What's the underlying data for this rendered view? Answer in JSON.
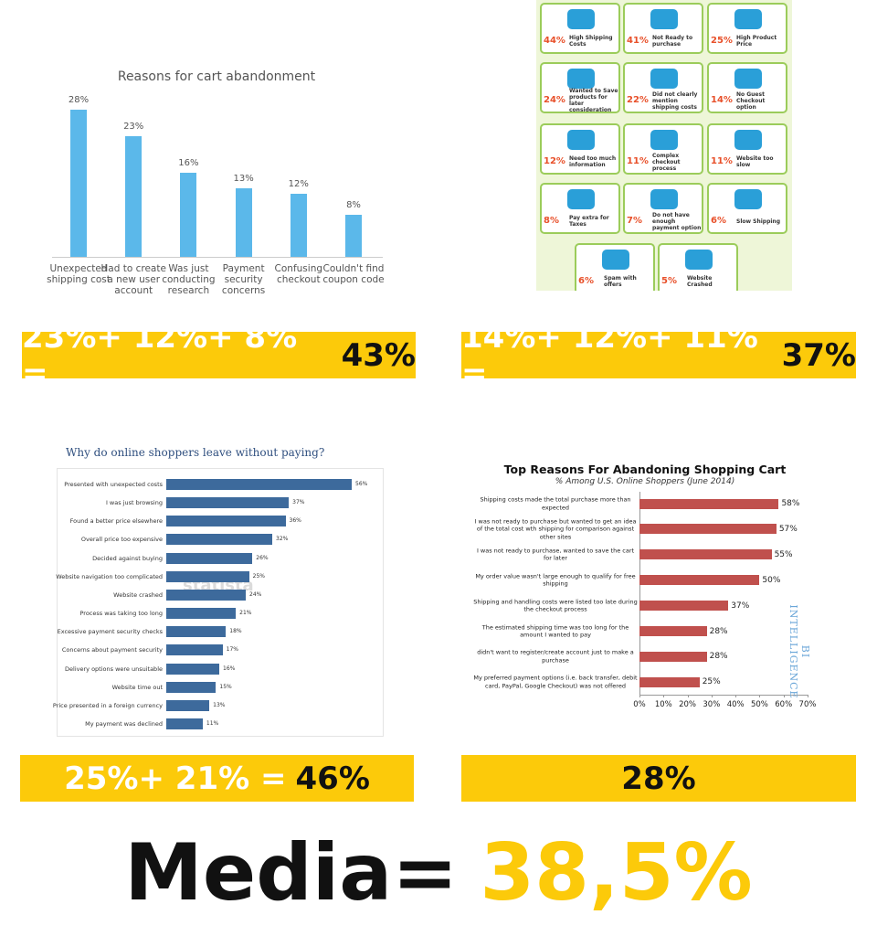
{
  "chart_data": [
    {
      "type": "bar",
      "orientation": "vertical",
      "title": "Reasons for cart abandonment",
      "color": "#5bb8ea",
      "categories": [
        "Unexpected shipping cost",
        "Had to create a new user account",
        "Was just conducting research",
        "Payment security concerns",
        "Confusing checkout",
        "Couldn't find coupon code"
      ],
      "values": [
        28,
        23,
        16,
        13,
        12,
        8
      ],
      "value_labels": [
        "28%",
        "23%",
        "16%",
        "13%",
        "12%",
        "8%"
      ]
    },
    {
      "type": "bar",
      "orientation": "horizontal",
      "title": "Why do online shoppers leave without paying?",
      "color": "#3d6a9c",
      "watermark": "statista",
      "categories": [
        "Presented with unexpected costs",
        "I was just browsing",
        "Found a better price elsewhere",
        "Overall price too expensive",
        "Decided against buying",
        "Website navigation too complicated",
        "Website crashed",
        "Process was taking too long",
        "Excessive payment security checks",
        "Concerns about payment security",
        "Delivery options were unsuitable",
        "Website time out",
        "Price presented in a foreign currency",
        "My payment was declined"
      ],
      "values": [
        56,
        37,
        36,
        32,
        26,
        25,
        24,
        21,
        18,
        17,
        16,
        15,
        13,
        11
      ],
      "value_labels": [
        "56%",
        "37%",
        "36%",
        "32%",
        "26%",
        "25%",
        "24%",
        "21%",
        "18%",
        "17%",
        "16%",
        "15%",
        "13%",
        "11%"
      ]
    },
    {
      "type": "bar",
      "orientation": "horizontal",
      "title": "Top Reasons For Abandoning Shopping Cart",
      "subtitle": "% Among U.S. Online Shoppers (June 2014)",
      "color": "#c0504d",
      "watermark": "BI INTELLIGENCE",
      "categories": [
        "Shipping costs made the total purchase more than expected",
        "I was not ready to purchase but wanted to get an idea of the total cost wth shipping for comparison against other sites",
        "I was not ready to purchase, wanted to save the cart for later",
        "My order value wasn't large enough to qualify for free shipping",
        "Shipping and handling costs were listed too late during the checkout process",
        "The estimated shipping time was too long for the amount I wanted to pay",
        "didn't want to register/create account just to make a purchase",
        "My preferred payment options (i.e. back transfer, debit card, PayPal, Google Checkout) was not offered"
      ],
      "values": [
        58,
        57,
        55,
        50,
        37,
        28,
        28,
        25
      ],
      "value_labels": [
        "58%",
        "57%",
        "55%",
        "50%",
        "37%",
        "28%",
        "28%",
        "25%"
      ],
      "xlim": [
        0,
        70
      ],
      "xticks": [
        {
          "value": 0,
          "label": "0%"
        },
        {
          "value": 10,
          "label": "10%"
        },
        {
          "value": 20,
          "label": "20%"
        },
        {
          "value": 30,
          "label": "30%"
        },
        {
          "value": 40,
          "label": "40%"
        },
        {
          "value": 50,
          "label": "50%"
        },
        {
          "value": 60,
          "label": "60%"
        },
        {
          "value": 70,
          "label": "70%"
        }
      ]
    }
  ],
  "infographic": {
    "items": [
      {
        "value": "44%",
        "label": "High Shipping Costs"
      },
      {
        "value": "41%",
        "label": "Not Ready to purchase"
      },
      {
        "value": "25%",
        "label": "High Product Price"
      },
      {
        "value": "24%",
        "label": "Wanted to Save products for later consideration"
      },
      {
        "value": "22%",
        "label": "Did not clearly mention shipping costs"
      },
      {
        "value": "14%",
        "label": "No Guest Checkout option"
      },
      {
        "value": "12%",
        "label": "Need too much information"
      },
      {
        "value": "11%",
        "label": "Complex checkout process"
      },
      {
        "value": "11%",
        "label": "Website too slow"
      },
      {
        "value": "8%",
        "label": "Pay extra for Taxes"
      },
      {
        "value": "7%",
        "label": "Do not have enough payment option"
      },
      {
        "value": "6%",
        "label": "Slow Shipping"
      },
      {
        "value": "6%",
        "label": "Spam with offers"
      },
      {
        "value": "5%",
        "label": "Website Crashed"
      }
    ]
  },
  "formulas": [
    {
      "terms": "23%+ 12%+ 8% =",
      "result": "43%"
    },
    {
      "terms": "14%+ 12%+ 11% =",
      "result": "37%"
    },
    {
      "terms": "25%+ 21% =",
      "result": "46%"
    },
    {
      "result": "28%"
    }
  ],
  "summary": {
    "label": "Media=",
    "value": "38,5%"
  }
}
